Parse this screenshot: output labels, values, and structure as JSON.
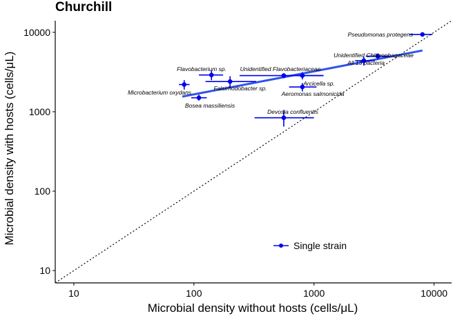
{
  "chart_data": {
    "type": "scatter",
    "title": "Churchill",
    "xlabel": "Microbial density without hosts (cells/μL)",
    "ylabel": "Microbial density with hosts (cells/μL)",
    "x_scale": "log10",
    "y_scale": "log10",
    "xlim": [
      7,
      14000
    ],
    "ylim": [
      7,
      14000
    ],
    "x_ticks": [
      10,
      100,
      1000,
      10000
    ],
    "x_tick_labels": [
      "10",
      "100",
      "1000",
      "10000"
    ],
    "y_ticks": [
      10,
      100,
      1000,
      10000
    ],
    "y_tick_labels": [
      "10",
      "100",
      "1000",
      "10000"
    ],
    "grid": false,
    "legend": {
      "position": "bottom-center",
      "entries": [
        "Single strain"
      ]
    },
    "colors": {
      "points": "#0000ee",
      "fit_line": "#2f54eb",
      "identity_line": "#000000"
    },
    "identity_line": "y = x",
    "fit_line": {
      "x": [
        80,
        8000
      ],
      "y": [
        1550,
        5900
      ]
    },
    "series": [
      {
        "name": "Single strain",
        "points": [
          {
            "label": "Pseudomonas protegens",
            "x": 8000,
            "y": 9400,
            "xerr": [
              6200,
              9700
            ],
            "yerr": [
              9200,
              9600
            ]
          },
          {
            "label": "Unidentified Chitinophagaceae",
            "x": 3400,
            "y": 5000,
            "xerr": [
              2700,
              4300
            ],
            "yerr": [
              4600,
              5400
            ]
          },
          {
            "label": "All 13 bacteria",
            "x": 2600,
            "y": 4400,
            "xerr": [
              2200,
              3200
            ],
            "yerr": [
              3800,
              4900
            ]
          },
          {
            "label": "Flavobacterium sp.",
            "x": 140,
            "y": 2900,
            "xerr": [
              110,
              175
            ],
            "yerr": [
              2500,
              3300
            ]
          },
          {
            "label": "Unidentified Flavobacteriaceae",
            "x": 800,
            "y": 2850,
            "xerr": [
              560,
              1200
            ],
            "yerr": [
              2550,
              3150
            ]
          },
          {
            "label": "Falsirhodobacter sp.",
            "x": 560,
            "y": 2850,
            "xerr": [
              240,
              1200
            ],
            "yerr": [
              2650,
              3050
            ]
          },
          {
            "label": "Falsirhodobacter sp.",
            "x": 200,
            "y": 2400,
            "xerr": [
              125,
              330
            ],
            "yerr": [
              2000,
              2800
            ]
          },
          {
            "label": "Arcicella sp.",
            "x": 800,
            "y": 2050,
            "xerr": [
              620,
              1050
            ],
            "yerr": [
              1800,
              2300
            ]
          },
          {
            "label": "Microbacterium oxydans",
            "x": 83,
            "y": 2200,
            "xerr": [
              75,
              92
            ],
            "yerr": [
              1900,
              2500
            ]
          },
          {
            "label": "Bosea massiliensis",
            "x": 110,
            "y": 1500,
            "xerr": [
              95,
              128
            ],
            "yerr": [
              1380,
              1640
            ]
          },
          {
            "label": "Devosia confluentis",
            "x": 560,
            "y": 840,
            "xerr": [
              320,
              1000
            ],
            "yerr": [
              650,
              1050
            ]
          }
        ],
        "visible_labels": [
          "Pseudomonas protegens",
          "Unidentified Chitinophagaceae",
          "All 13 bacteria",
          "Flavobacterium sp.",
          "Unidentified Flavobacteriaceae",
          "Microbacterium oxydans",
          "Falsirhodobacter sp.",
          "Arcicella sp.",
          "Aeromonas salmonicida",
          "Bosea massiliensis",
          "Devosia confluentis"
        ]
      }
    ]
  }
}
